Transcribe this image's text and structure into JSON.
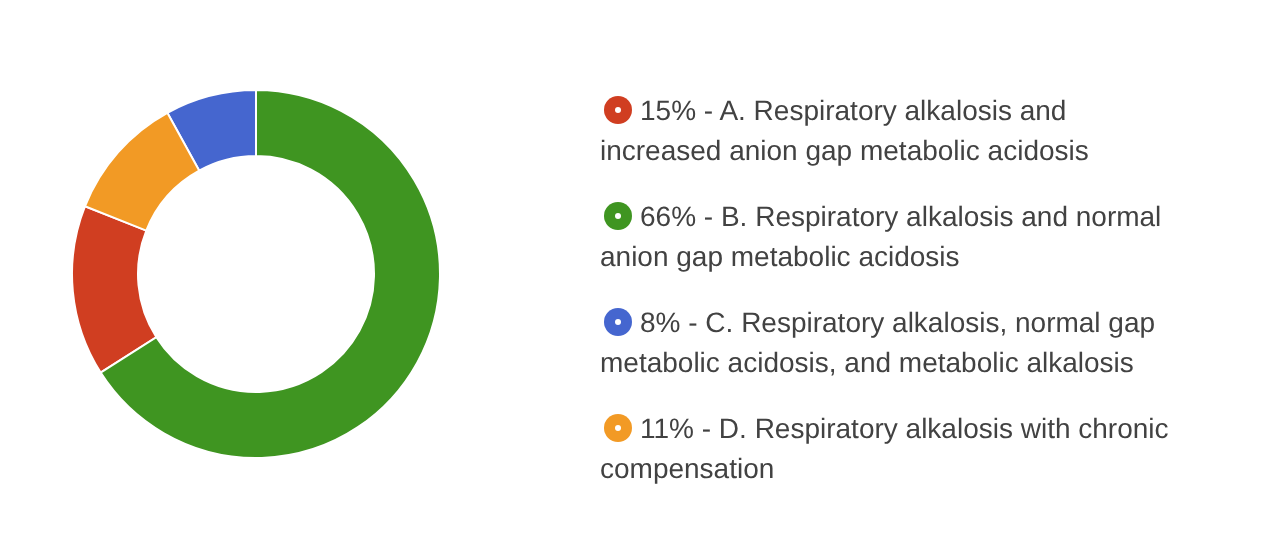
{
  "chart_data": {
    "type": "donut",
    "categories": [
      "15% - A. Respiratory alkalosis and increased anion gap metabolic acidosis",
      "66% - B. Respiratory alkalosis and normal anion gap metabolic acidosis",
      "8% - C. Respiratory alkalosis, normal gap metabolic acidosis, and metabolic alkalosis",
      "11% - D. Respiratory alkalosis with chronic compensation"
    ],
    "values": [
      15,
      66,
      8,
      11
    ],
    "colors": [
      "#d03e21",
      "#3f9521",
      "#4566cf",
      "#f29a25"
    ],
    "legend": "right"
  }
}
